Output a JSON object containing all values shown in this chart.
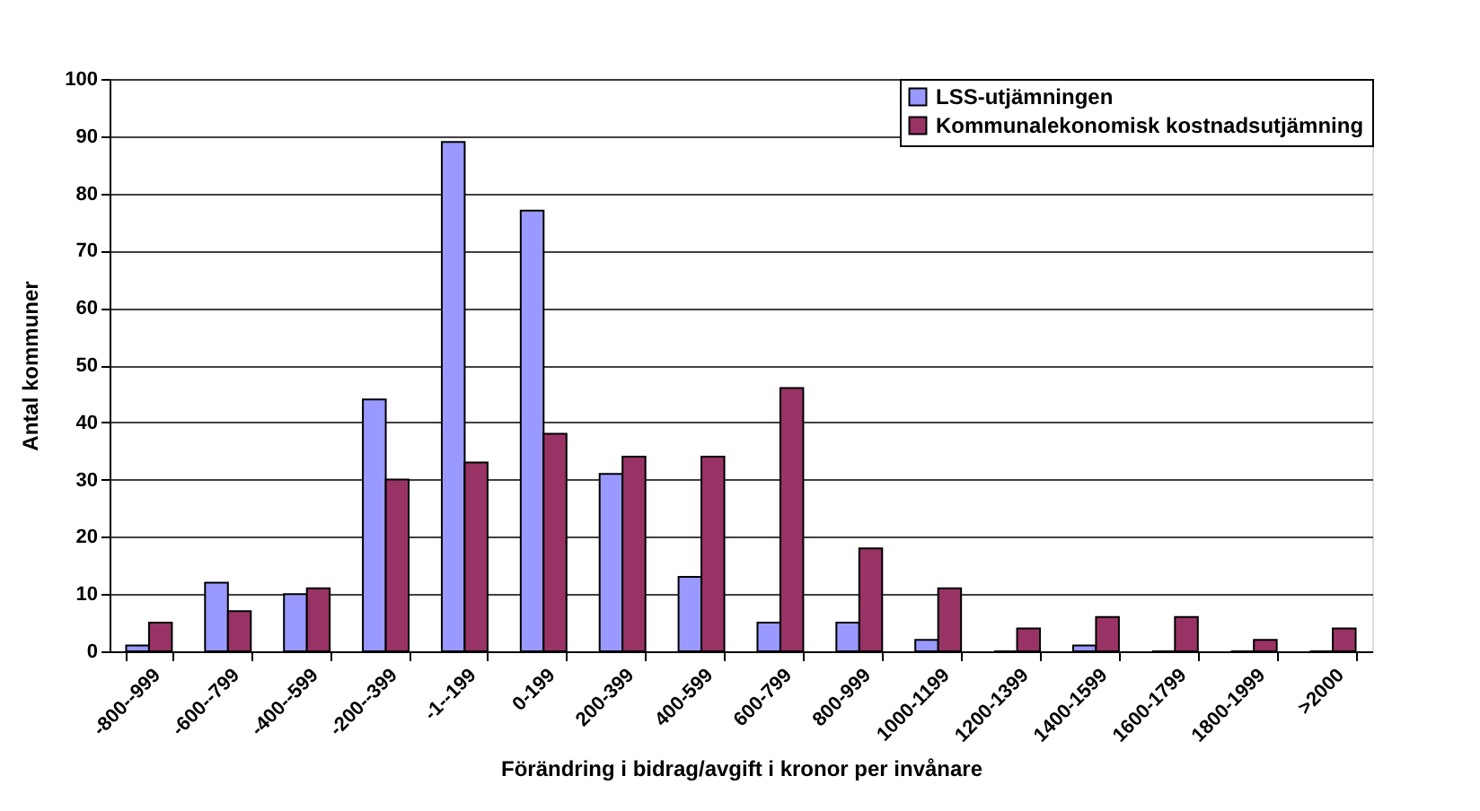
{
  "chart_data": {
    "type": "bar",
    "xlabel": "Förändring i bidrag/avgift i kronor per invånare",
    "ylabel": "Antal kommuner",
    "categories": [
      "-800--999",
      "-600--799",
      "-400--599",
      "-200--399",
      "-1--199",
      "0-199",
      "200-399",
      "400-599",
      "600-799",
      "800-999",
      "1000-1199",
      "1200-1399",
      "1400-1599",
      "1600-1799",
      "1800-1999",
      ">2000"
    ],
    "series": [
      {
        "name": "LSS-utjämningen",
        "color": "#9999ff",
        "values": [
          1,
          12,
          10,
          44,
          89,
          77,
          31,
          13,
          5,
          5,
          2,
          0,
          1,
          0,
          0,
          0
        ]
      },
      {
        "name": "Kommunalekonomisk kostnadsutjämning",
        "color": "#993366",
        "values": [
          5,
          7,
          11,
          30,
          33,
          38,
          34,
          34,
          46,
          18,
          11,
          4,
          6,
          6,
          2,
          4
        ]
      }
    ],
    "ylim": [
      0,
      100
    ],
    "yticks": [
      0,
      10,
      20,
      30,
      40,
      50,
      60,
      70,
      80,
      90,
      100
    ],
    "grid": "y",
    "legend": "top right"
  }
}
